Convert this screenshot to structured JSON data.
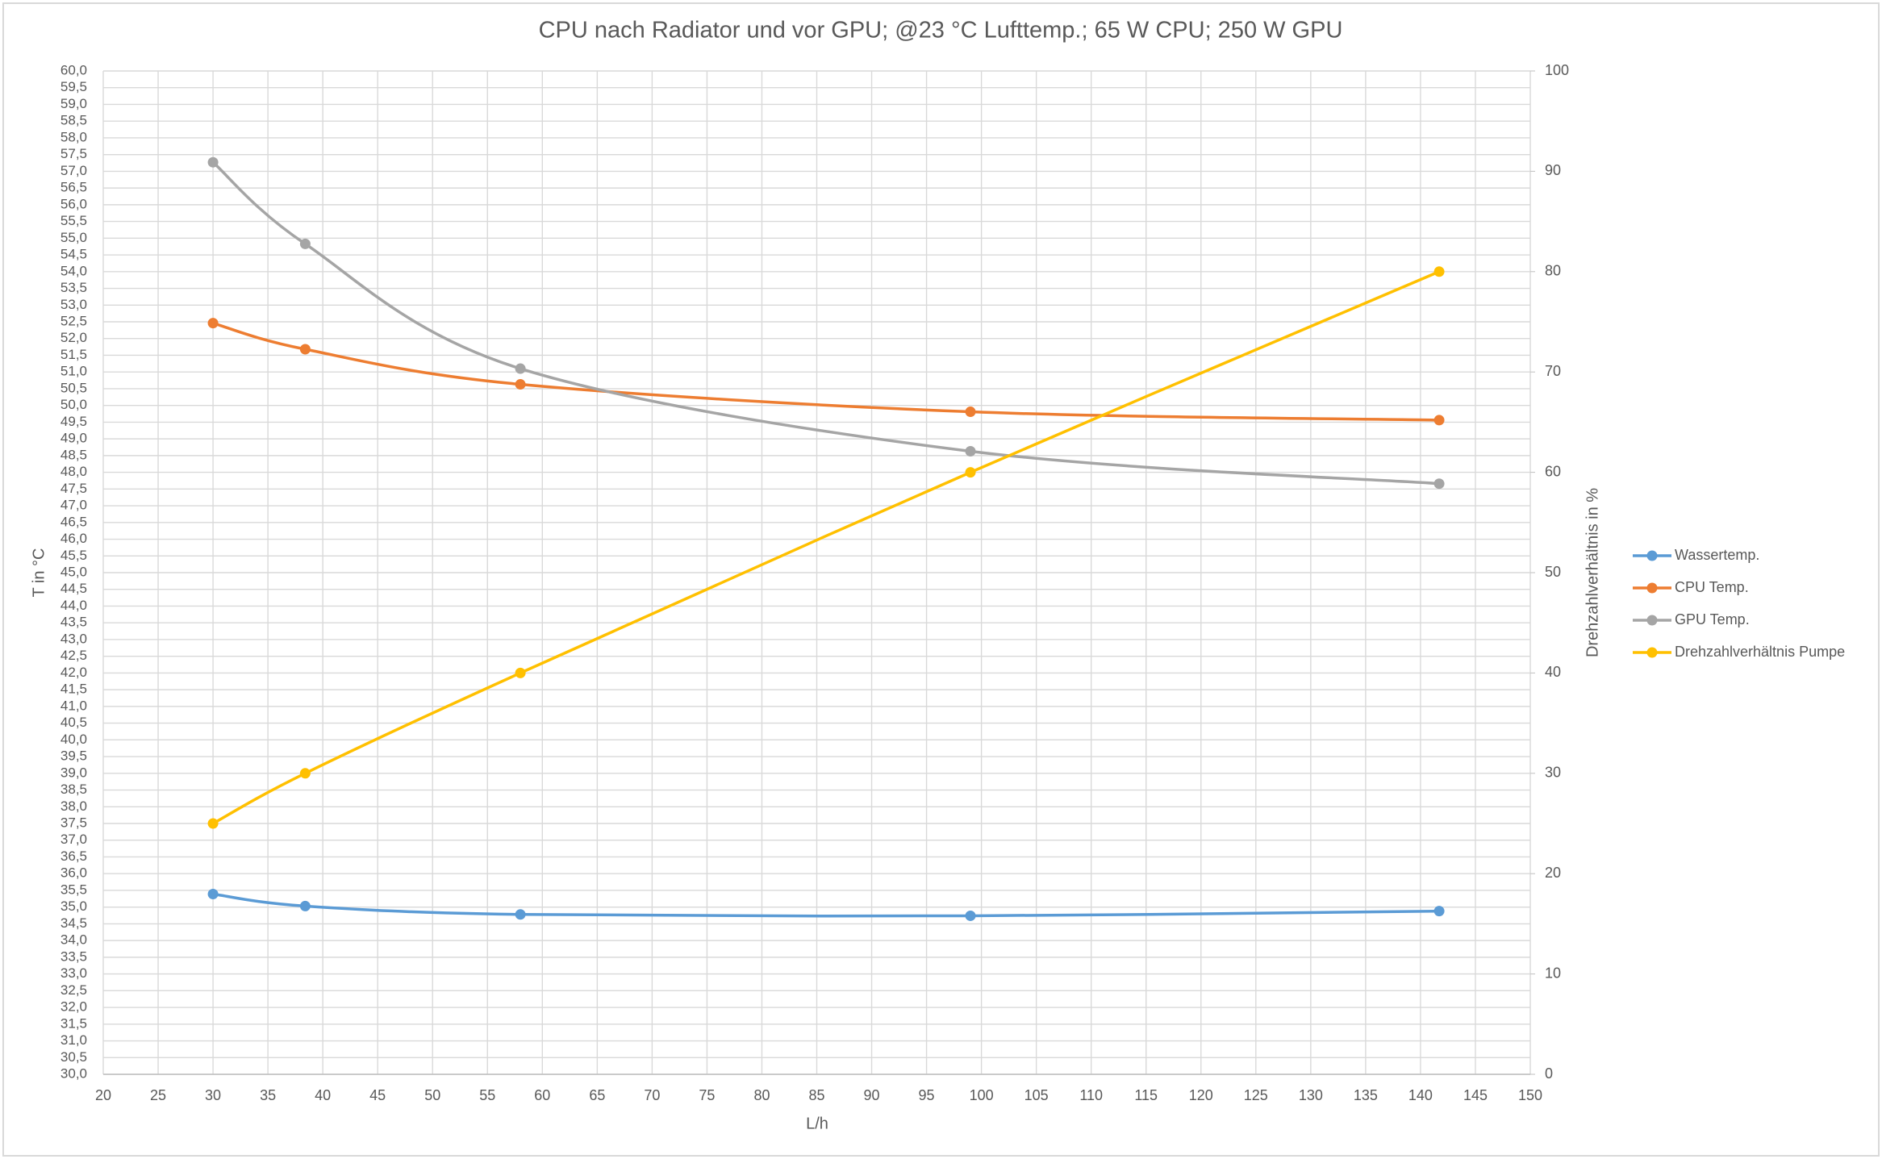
{
  "chart_data": {
    "type": "line",
    "title": "CPU nach Radiator und vor GPU; @23 °C Lufttemp.; 65 W CPU; 250 W GPU",
    "x_label": "L/h",
    "y_label": "T in °C",
    "y2_label": "Drehzahlverhältnis in %",
    "x": [
      30,
      38.4,
      58,
      99,
      141.7
    ],
    "series": [
      {
        "name": "Wassertemp.",
        "color": "#5b9bd5",
        "values": [
          35.39,
          35.03,
          34.78,
          34.74,
          34.88
        ]
      },
      {
        "name": "CPU Temp.",
        "color": "#ed7d31",
        "values": [
          52.46,
          51.68,
          50.63,
          49.81,
          49.56
        ]
      },
      {
        "name": "GPU Temp.",
        "color": "#a5a5a5",
        "values": [
          57.27,
          54.83,
          51.1,
          48.63,
          47.66
        ]
      },
      {
        "name": "Drehzahlverhältnis Pumpe",
        "color": "#ffc000",
        "axis": "y2",
        "values": [
          25,
          30,
          40,
          60,
          80
        ]
      }
    ],
    "xlim": [
      20,
      150
    ],
    "xticks": [
      20,
      25,
      30,
      35,
      40,
      45,
      50,
      55,
      60,
      65,
      70,
      75,
      80,
      85,
      90,
      95,
      100,
      105,
      110,
      115,
      120,
      125,
      130,
      135,
      140,
      145,
      150
    ],
    "ylim": [
      30,
      60
    ],
    "yticks": [
      {
        "value": 30,
        "label": "30,0"
      },
      {
        "value": 30.5,
        "label": "30,5"
      },
      {
        "value": 31,
        "label": "31,0"
      },
      {
        "value": 31.5,
        "label": "31,5"
      },
      {
        "value": 32,
        "label": "32,0"
      },
      {
        "value": 32.5,
        "label": "32,5"
      },
      {
        "value": 33,
        "label": "33,0"
      },
      {
        "value": 33.5,
        "label": "33,5"
      },
      {
        "value": 34,
        "label": "34,0"
      },
      {
        "value": 34.5,
        "label": "34,5"
      },
      {
        "value": 35,
        "label": "35,0"
      },
      {
        "value": 35.5,
        "label": "35,5"
      },
      {
        "value": 36,
        "label": "36,0"
      },
      {
        "value": 36.5,
        "label": "36,5"
      },
      {
        "value": 37,
        "label": "37,0"
      },
      {
        "value": 37.5,
        "label": "37,5"
      },
      {
        "value": 38,
        "label": "38,0"
      },
      {
        "value": 38.5,
        "label": "38,5"
      },
      {
        "value": 39,
        "label": "39,0"
      },
      {
        "value": 39.5,
        "label": "39,5"
      },
      {
        "value": 40,
        "label": "40,0"
      },
      {
        "value": 40.5,
        "label": "40,5"
      },
      {
        "value": 41,
        "label": "41,0"
      },
      {
        "value": 41.5,
        "label": "41,5"
      },
      {
        "value": 42,
        "label": "42,0"
      },
      {
        "value": 42.5,
        "label": "42,5"
      },
      {
        "value": 43,
        "label": "43,0"
      },
      {
        "value": 43.5,
        "label": "43,5"
      },
      {
        "value": 44,
        "label": "44,0"
      },
      {
        "value": 44.5,
        "label": "44,5"
      },
      {
        "value": 45,
        "label": "45,0"
      },
      {
        "value": 45.5,
        "label": "45,5"
      },
      {
        "value": 46,
        "label": "46,0"
      },
      {
        "value": 46.5,
        "label": "46,5"
      },
      {
        "value": 47,
        "label": "47,0"
      },
      {
        "value": 47.5,
        "label": "47,5"
      },
      {
        "value": 48,
        "label": "48,0"
      },
      {
        "value": 48.5,
        "label": "48,5"
      },
      {
        "value": 49,
        "label": "49,0"
      },
      {
        "value": 49.5,
        "label": "49,5"
      },
      {
        "value": 50,
        "label": "50,0"
      },
      {
        "value": 50.5,
        "label": "50,5"
      },
      {
        "value": 51,
        "label": "51,0"
      },
      {
        "value": 51.5,
        "label": "51,5"
      },
      {
        "value": 52,
        "label": "52,0"
      },
      {
        "value": 52.5,
        "label": "52,5"
      },
      {
        "value": 53,
        "label": "53,0"
      },
      {
        "value": 53.5,
        "label": "53,5"
      },
      {
        "value": 54,
        "label": "54,0"
      },
      {
        "value": 54.5,
        "label": "54,5"
      },
      {
        "value": 55,
        "label": "55,0"
      },
      {
        "value": 55.5,
        "label": "55,5"
      },
      {
        "value": 56,
        "label": "56,0"
      },
      {
        "value": 56.5,
        "label": "56,5"
      },
      {
        "value": 57,
        "label": "57,0"
      },
      {
        "value": 57.5,
        "label": "57,5"
      },
      {
        "value": 58,
        "label": "58,0"
      },
      {
        "value": 58.5,
        "label": "58,5"
      },
      {
        "value": 59,
        "label": "59,0"
      },
      {
        "value": 59.5,
        "label": "59,5"
      },
      {
        "value": 60,
        "label": "60,0"
      }
    ],
    "y2lim": [
      0,
      100
    ],
    "y2ticks": [
      0,
      10,
      20,
      30,
      40,
      50,
      60,
      70,
      80,
      90,
      100
    ],
    "grid": true,
    "smooth": true,
    "legend": "right"
  }
}
